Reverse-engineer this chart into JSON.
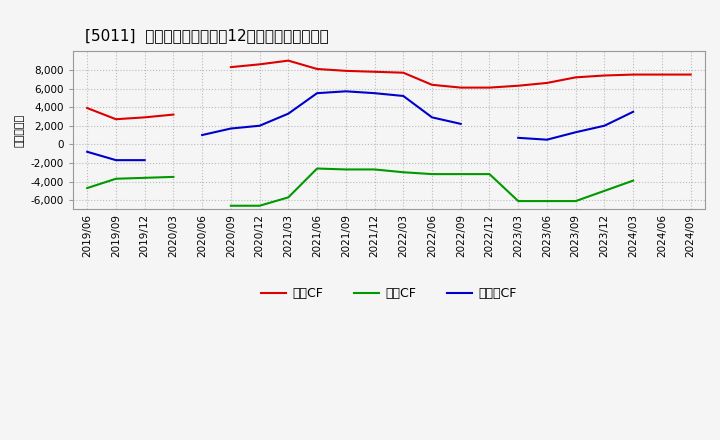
{
  "title": "[5011]  キャッシュフローの12か月移動合計の推移",
  "ylabel": "（百万円）",
  "legend_op": "営業CF",
  "legend_inv": "投資CF",
  "legend_free": "フリーCF",
  "x_labels": [
    "2019/06",
    "2019/09",
    "2019/12",
    "2020/03",
    "2020/06",
    "2020/09",
    "2020/12",
    "2021/03",
    "2021/06",
    "2021/09",
    "2021/12",
    "2022/03",
    "2022/06",
    "2022/09",
    "2022/12",
    "2023/03",
    "2023/06",
    "2023/09",
    "2023/12",
    "2024/03",
    "2024/06",
    "2024/09"
  ],
  "operating_cf": [
    3900,
    2700,
    2900,
    3200,
    null,
    8300,
    8600,
    9000,
    8100,
    7900,
    7800,
    7700,
    6400,
    6100,
    6100,
    6300,
    6600,
    7200,
    7400,
    7500,
    7500,
    7500
  ],
  "investing_cf": [
    -4700,
    -3700,
    -3600,
    -3500,
    null,
    -6600,
    -6600,
    -5700,
    -2600,
    -2700,
    -2700,
    -3000,
    -3200,
    -3200,
    -3200,
    -6100,
    -6100,
    -6100,
    -5000,
    -3900,
    null,
    null
  ],
  "free_cf": [
    -800,
    -1700,
    -1700,
    null,
    1000,
    1700,
    2000,
    3300,
    5500,
    5700,
    5500,
    5200,
    2900,
    2200,
    null,
    700,
    500,
    1300,
    2000,
    3500,
    null,
    null
  ],
  "operating_color": "#dd0000",
  "investing_color": "#009900",
  "free_color": "#0000cc",
  "ylim": [
    -7000,
    10000
  ],
  "yticks": [
    -6000,
    -4000,
    -2000,
    0,
    2000,
    4000,
    6000,
    8000
  ],
  "background_color": "#f5f5f5",
  "plot_bg_color": "#f5f5f5",
  "grid_color": "#bbbbbb",
  "title_fontsize": 11,
  "label_fontsize": 8,
  "tick_fontsize": 7.5
}
